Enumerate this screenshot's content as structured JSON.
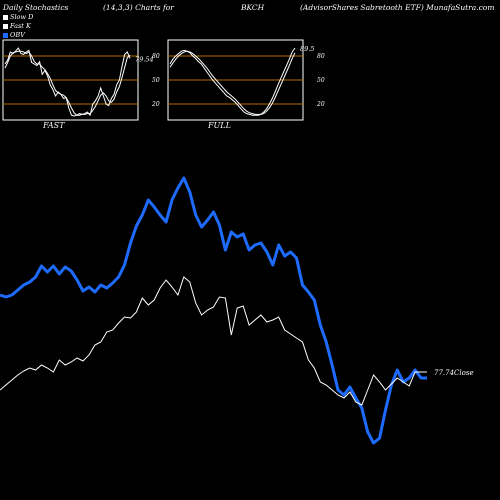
{
  "header": {
    "title_left": "Daily Stochastics",
    "params": "(14,3,3) Charts for",
    "symbol": "BKCH",
    "fund_name": "(AdvisorShares Sabretooth ETF) MunafaSutra.com"
  },
  "legend": [
    {
      "label": "Slow D",
      "color": "#ffffff"
    },
    {
      "label": "Fast K",
      "color": "#ffffff"
    },
    {
      "label": "OBV",
      "color": "#1e6bff"
    }
  ],
  "panels": [
    {
      "label": "FAST",
      "value_label": "79.54",
      "ticks": [
        "80",
        "50",
        "20"
      ],
      "k": [
        70,
        75,
        85,
        83,
        86,
        90,
        83,
        82,
        85,
        87,
        72,
        70,
        68,
        73,
        57,
        62,
        55,
        44,
        38,
        30,
        35,
        32,
        27,
        28,
        15,
        6,
        5,
        6,
        8,
        7,
        8,
        10,
        6,
        20,
        24,
        30,
        40,
        30,
        20,
        18,
        27,
        32,
        44,
        50,
        67,
        82,
        85,
        77
      ],
      "d": [
        65,
        72,
        80,
        84,
        85,
        86,
        86,
        85,
        83,
        85,
        80,
        73,
        70,
        70,
        66,
        63,
        58,
        52,
        44,
        37,
        34,
        32,
        31,
        28,
        22,
        15,
        9,
        6,
        6,
        7,
        7,
        8,
        8,
        12,
        17,
        24,
        31,
        34,
        30,
        24,
        22,
        26,
        35,
        42,
        53,
        66,
        78,
        81
      ]
    },
    {
      "label": "FULL",
      "value_label": "89.5",
      "ticks": [
        "80",
        "50",
        "20"
      ],
      "k": [
        70,
        76,
        80,
        83,
        86,
        87,
        86,
        84,
        80,
        77,
        73,
        70,
        65,
        60,
        55,
        50,
        46,
        42,
        38,
        34,
        30,
        28,
        25,
        22,
        18,
        14,
        10,
        8,
        7,
        6,
        6,
        6,
        7,
        10,
        14,
        20,
        27,
        35,
        44,
        52,
        60,
        68,
        76,
        85,
        90
      ],
      "d": [
        66,
        71,
        76,
        80,
        83,
        85,
        86,
        85,
        83,
        80,
        77,
        73,
        69,
        65,
        60,
        55,
        51,
        47,
        43,
        39,
        35,
        32,
        29,
        26,
        22,
        18,
        14,
        11,
        9,
        8,
        7,
        7,
        7,
        8,
        11,
        15,
        21,
        28,
        36,
        44,
        52,
        60,
        68,
        77,
        84
      ]
    }
  ],
  "main": {
    "close_label": "77.74Close",
    "obv": [
      295,
      297,
      295,
      290,
      285,
      282,
      277,
      266,
      272,
      266,
      274,
      267,
      271,
      280,
      291,
      287,
      292,
      285,
      288,
      283,
      277,
      265,
      243,
      226,
      215,
      200,
      207,
      215,
      222,
      200,
      188,
      178,
      192,
      215,
      227,
      220,
      212,
      225,
      250,
      232,
      237,
      234,
      250,
      245,
      243,
      252,
      265,
      245,
      256,
      252,
      258,
      285,
      292,
      300,
      325,
      342,
      365,
      390,
      395,
      387,
      398,
      408,
      432,
      443,
      438,
      410,
      385,
      370,
      382,
      378,
      370,
      378,
      378
    ],
    "close": [
      390,
      385,
      380,
      375,
      371,
      368,
      370,
      365,
      368,
      372,
      360,
      365,
      362,
      358,
      361,
      355,
      345,
      342,
      332,
      330,
      323,
      317,
      318,
      312,
      298,
      305,
      300,
      288,
      280,
      287,
      295,
      277,
      282,
      303,
      315,
      310,
      307,
      297,
      298,
      335,
      308,
      306,
      325,
      320,
      315,
      322,
      320,
      317,
      330,
      334,
      338,
      342,
      360,
      368,
      382,
      385,
      390,
      395,
      398,
      392,
      402,
      405,
      390,
      375,
      382,
      390,
      384,
      378,
      382,
      386,
      372,
      372,
      372
    ],
    "xmin": 0,
    "xmax": 72,
    "ylim": [
      150,
      470
    ]
  }
}
